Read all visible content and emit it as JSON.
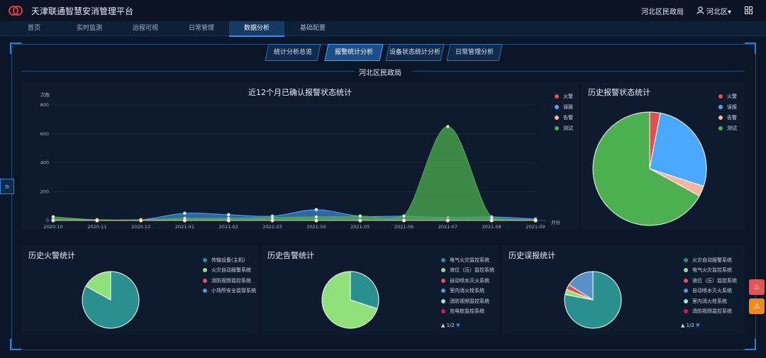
{
  "app": {
    "title": "天津联通智慧安消管理平台",
    "org": "河北区民政局",
    "user": "河北区▾"
  },
  "nav": {
    "tabs": [
      "首页",
      "实时监测",
      "远程可视",
      "日常管理",
      "数据分析",
      "基础配置"
    ],
    "active": 4
  },
  "subtabs": {
    "items": [
      "统计分析总览",
      "报警统计分析",
      "设备状态统计分析",
      "日常管理分析"
    ],
    "active": 1
  },
  "region": "河北区民政局",
  "colors": {
    "fire": "#e05252",
    "false_alarm": "#4aa8ff",
    "warning": "#f7b6a0",
    "test": "#4caf50",
    "accent": "#2b8cff"
  },
  "chart_data": [
    {
      "type": "area",
      "title": "近12个月已确认报警状态统计",
      "ylabel": "次数",
      "xlabel": "月份",
      "ylim": [
        0,
        800
      ],
      "yticks": [
        0,
        200,
        400,
        600,
        800
      ],
      "x": [
        "2020-10",
        "2020-11",
        "2020-12",
        "2021-01",
        "2021-02",
        "2021-03",
        "2021-04",
        "2021-05",
        "2021-06",
        "2021-07",
        "2021-08",
        "2021-09"
      ],
      "series": [
        {
          "name": "火警",
          "values": [
            0,
            0,
            0,
            0,
            0,
            0,
            0,
            0,
            0,
            0,
            0,
            0
          ]
        },
        {
          "name": "误报",
          "values": [
            10,
            5,
            5,
            50,
            40,
            30,
            75,
            30,
            30,
            20,
            25,
            10
          ]
        },
        {
          "name": "告警",
          "values": [
            0,
            0,
            0,
            0,
            0,
            0,
            0,
            0,
            0,
            0,
            0,
            0
          ]
        },
        {
          "name": "测试",
          "values": [
            25,
            5,
            5,
            15,
            15,
            20,
            25,
            30,
            30,
            650,
            20,
            5
          ]
        }
      ],
      "legend": "top-right"
    },
    {
      "type": "pie",
      "title": "历史报警状态统计",
      "labels": [
        "火警",
        "误报",
        "告警",
        "测试"
      ],
      "values": [
        3,
        27,
        3,
        67
      ],
      "legend": "top-right"
    },
    {
      "type": "pie",
      "title": "历史火警统计",
      "labels": [
        "传输设备(主机)",
        "火灾自动报警系统",
        "消防视频监控系统",
        "小场所安全监管系统"
      ],
      "values": [
        83,
        17,
        0,
        0
      ],
      "legend": "top-right"
    },
    {
      "type": "pie",
      "title": "历史告警统计",
      "labels": [
        "电气火灾监控系统",
        "液位（压）监控系统",
        "自动喷水灭火系统",
        "室内消火栓系统",
        "消防视频监控系统",
        "充电桩监控系统"
      ],
      "values": [
        30,
        70,
        0,
        0,
        0,
        0
      ],
      "legend": "top-right",
      "page": "1/2"
    },
    {
      "type": "pie",
      "title": "历史误报统计",
      "labels": [
        "火灾自动报警系统",
        "电气火灾监控系统",
        "液位（压）监控系统",
        "自动喷水灭火系统",
        "室内消火栓系统",
        "消防视频监控系统"
      ],
      "values": [
        78,
        3,
        3,
        16,
        0,
        0
      ],
      "legend": "top-right",
      "page": "1/2"
    }
  ]
}
